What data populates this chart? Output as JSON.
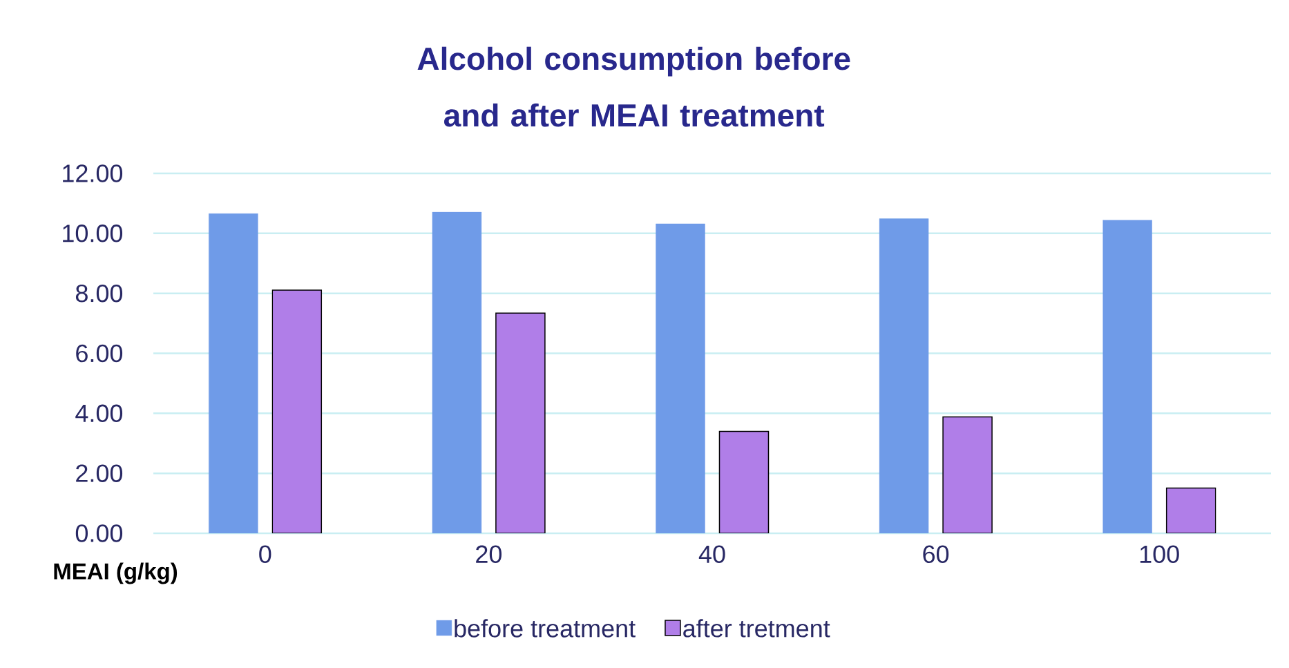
{
  "chart_data": {
    "type": "bar",
    "title": "Alcohol consumption before and after MEAI treatment",
    "xlabel": "MEAI (g/kg)",
    "categories": [
      "0",
      "20",
      "40",
      "60",
      "100"
    ],
    "series": [
      {
        "name": "before treatment",
        "color": "#6f9be8",
        "values": [
          10.66,
          10.71,
          10.32,
          10.49,
          10.44
        ]
      },
      {
        "name": "after tretment",
        "color": "#b07ee8",
        "values": [
          8.11,
          7.34,
          3.4,
          3.88,
          1.51
        ]
      }
    ],
    "ylim": [
      0,
      12
    ],
    "yticks": [
      {
        "value": 0,
        "label": "0.00"
      },
      {
        "value": 2,
        "label": "2.00"
      },
      {
        "value": 4,
        "label": "4.00"
      },
      {
        "value": 6,
        "label": "6.00"
      },
      {
        "value": 8,
        "label": "8.00"
      },
      {
        "value": 10,
        "label": "10.00"
      },
      {
        "value": 12,
        "label": "12.00"
      }
    ],
    "grid": "y",
    "legend": "bottom"
  }
}
